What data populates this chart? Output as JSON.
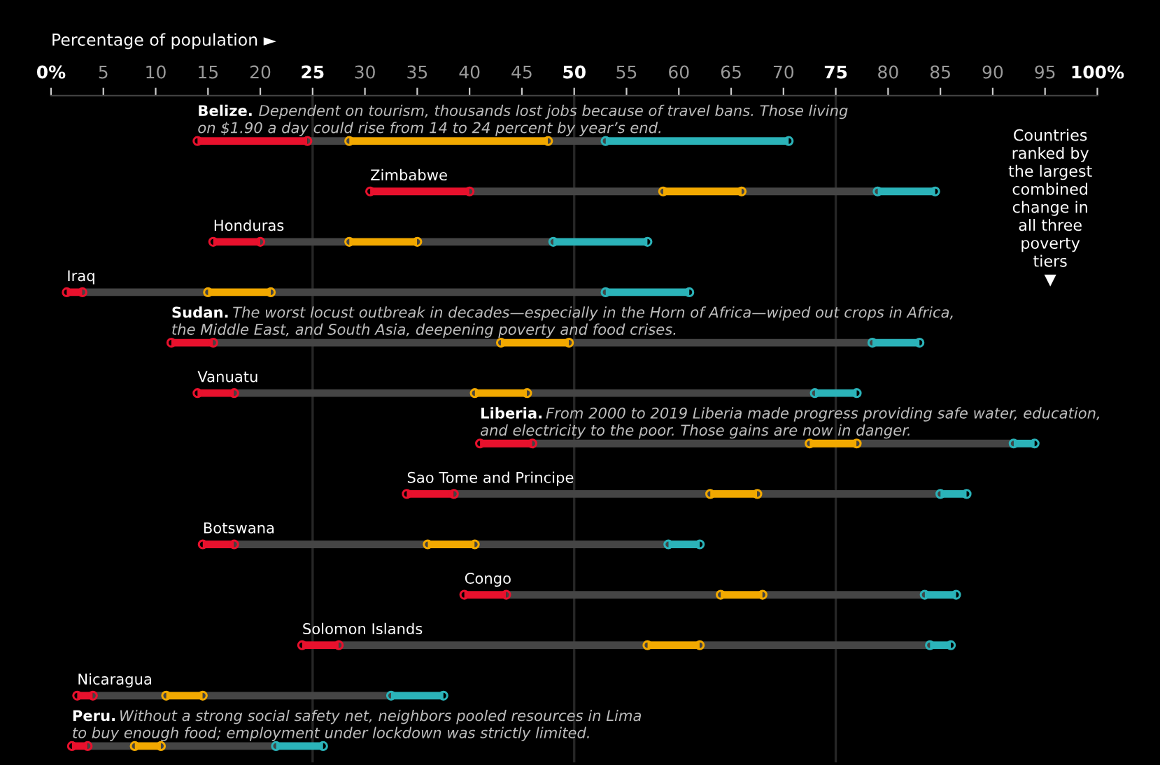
{
  "chart_data": {
    "type": "bar",
    "orientation": "horizontal",
    "xlabel": "Percentage of population ►",
    "categories": [
      "Belize.",
      "Zimbabwe",
      "Honduras",
      "Iraq",
      "Sudan.",
      "Vanuatu",
      "Liberia.",
      "Sao Tome and Principe",
      "Botswana",
      "Congo",
      "Solomon Islands",
      "Nicaragua",
      "Peru."
    ],
    "series": [
      {
        "color": "#e8112d",
        "base": [
          14,
          30.5,
          15.5,
          1.5,
          11.5,
          14,
          41,
          34,
          14.5,
          39.5,
          24,
          2.5,
          2
        ],
        "values": [
          10.5,
          9.5,
          4.5,
          1.5,
          4,
          3.5,
          5,
          4.5,
          3,
          4,
          3.5,
          1.5,
          1.5
        ]
      },
      {
        "color": "#454545",
        "marker": "none",
        "base": [
          24.5,
          40,
          20,
          3,
          15.5,
          17.5,
          46,
          38.5,
          17.5,
          43.5,
          27.5,
          4,
          3.5
        ],
        "values": [
          4,
          18.5,
          8.5,
          12,
          27.5,
          23,
          26.5,
          24.5,
          18.5,
          20.5,
          29.5,
          7,
          4.5
        ]
      },
      {
        "color": "#f2a900",
        "base": [
          28.5,
          58.5,
          28.5,
          15,
          43,
          40.5,
          72.5,
          63,
          36,
          64,
          57,
          11,
          8
        ],
        "values": [
          19,
          7.5,
          6.5,
          6,
          6.5,
          5,
          4.5,
          4.5,
          4.5,
          4,
          5,
          3.5,
          2.5
        ]
      },
      {
        "color": "#454545",
        "marker": "none",
        "base": [
          47.5,
          66,
          35,
          21,
          49.5,
          45.5,
          77,
          67.5,
          40.5,
          68,
          62,
          14.5,
          10.5
        ],
        "values": [
          5.5,
          13,
          13,
          32,
          29,
          27.5,
          15,
          17.5,
          18.5,
          15.5,
          22,
          18,
          11
        ]
      },
      {
        "color": "#2bb3b9",
        "base": [
          53,
          79,
          48,
          53,
          78.5,
          73,
          92,
          85,
          59,
          83.5,
          84,
          32.5,
          21.5
        ],
        "values": [
          17.5,
          5.5,
          9,
          8,
          4.5,
          4,
          2,
          2.5,
          3,
          3,
          2,
          5,
          4.5
        ]
      }
    ],
    "marker": "circle",
    "xlim": [
      0,
      100
    ],
    "xticks": [
      {
        "value": 0,
        "label": "0%"
      },
      5,
      10,
      15,
      20,
      25,
      30,
      35,
      40,
      45,
      50,
      55,
      60,
      65,
      70,
      75,
      80,
      85,
      90,
      95,
      {
        "value": 100,
        "label": "100%"
      }
    ],
    "ref_lines": [
      {
        "axis": "x",
        "value": 25,
        "color": "#262626"
      },
      {
        "axis": "x",
        "value": 50,
        "color": "#262626"
      },
      {
        "axis": "x",
        "value": 75,
        "color": "#262626"
      }
    ],
    "grid": false,
    "legend": false,
    "annotations": [
      "Dependent on tourism, thousands lost jobs because of travel bans. Those living\non $1.90 a day could rise from 14 to 24 percent by year’s end.",
      "The worst locust outbreak in decades—especially in the Horn of Africa—wiped out crops in Africa,\nthe Middle East, and South Asia, deepening poverty and food crises.",
      "From 2000 to 2019 Liberia made progress providing safe water, education,\nand electricity to the poor. Those gains are now in danger.",
      "Without a strong social safety net, neighbors pooled resources in Lima\nto buy enough food; employment under lockdown was strictly limited.",
      "Countries\nranked by\nthe largest\ncombined\nchange in\nall three\npoverty\ntiers\n▼"
    ]
  }
}
